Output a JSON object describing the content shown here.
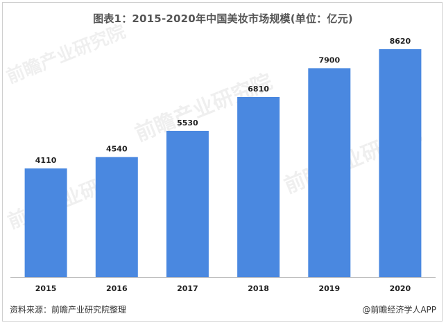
{
  "chart_data": {
    "type": "bar",
    "title": "图表1：2015-2020年中国美妆市场规模(单位：亿元)",
    "categories": [
      "2015",
      "2016",
      "2017",
      "2018",
      "2019",
      "2020"
    ],
    "values": [
      4110,
      4540,
      5530,
      6810,
      7900,
      8620
    ],
    "data_labels": [
      "4110",
      "4540",
      "5530",
      "6810",
      "7900",
      "8620"
    ],
    "bar_color": "#4a88e0",
    "ylim": [
      0,
      9300
    ],
    "grid": false,
    "legend": "none"
  },
  "footer": {
    "source": "资料来源：前瞻产业研究院整理",
    "credit": "@前瞻经济学人APP"
  },
  "watermark": {
    "text": "前瞻产业研究院"
  }
}
